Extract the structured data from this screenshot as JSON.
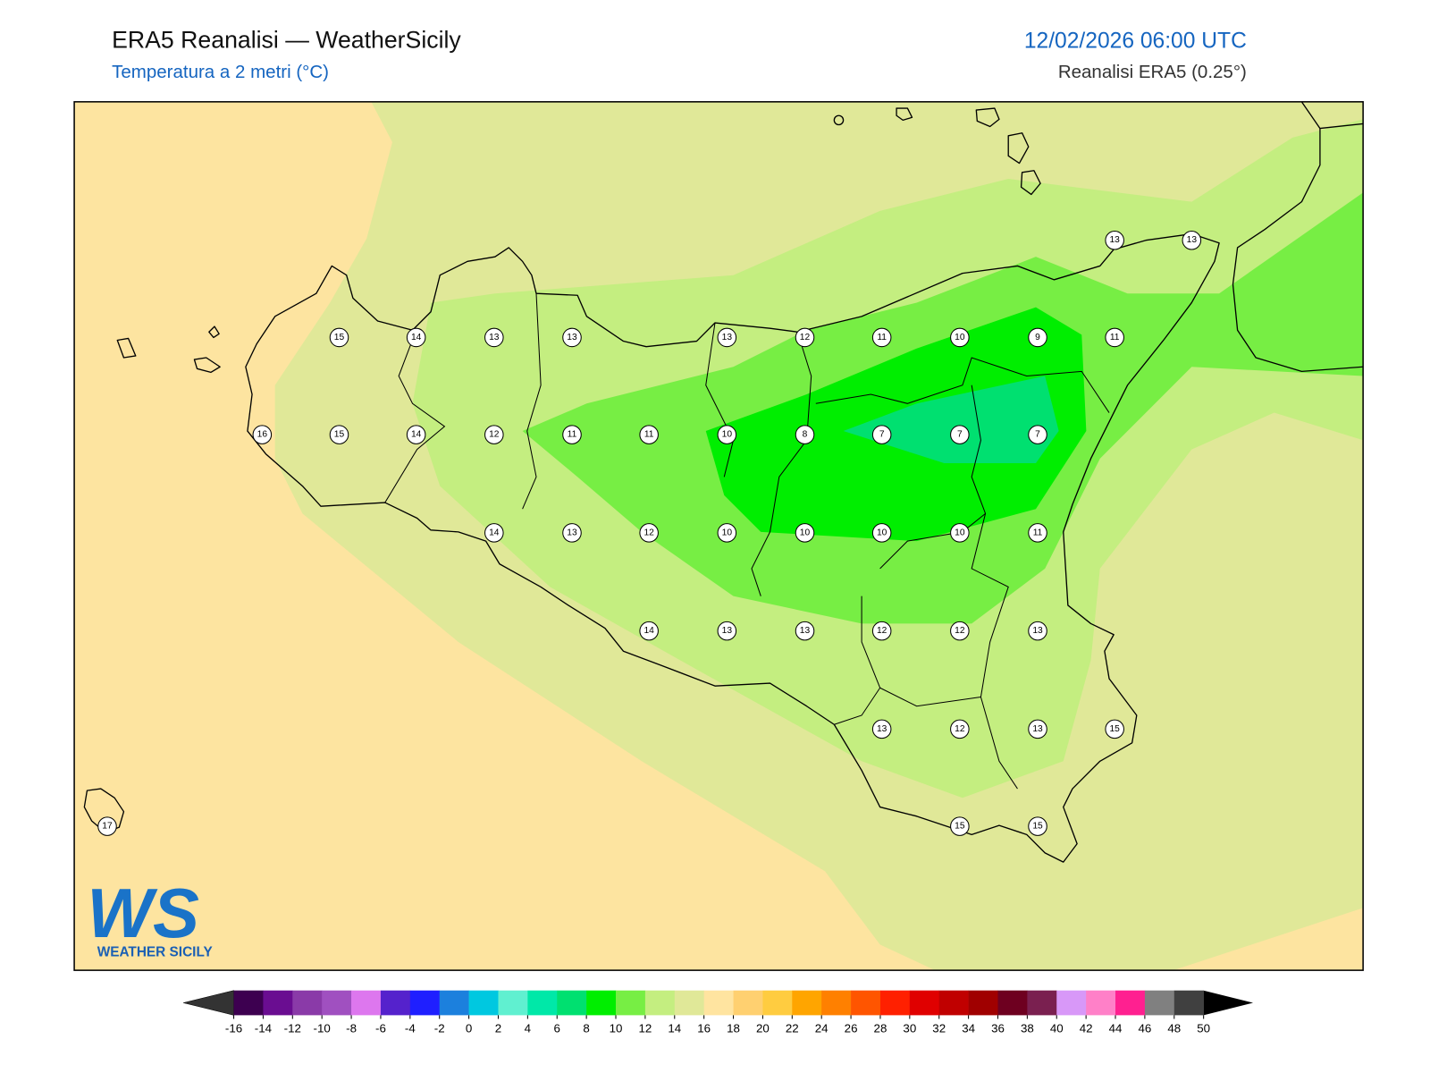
{
  "header": {
    "title": "ERA5 Reanalisi — WeatherSicily",
    "subtitle": "Temperatura a 2 metri (°C)",
    "datetime": "12/02/2026 06:00 UTC",
    "source": "Reanalisi ERA5 (0.25°)"
  },
  "stations": [
    15,
    14,
    13,
    13,
    13,
    12,
    11,
    10,
    9,
    11,
    13,
    13,
    16,
    15,
    14,
    12,
    11,
    11,
    10,
    8,
    7,
    7,
    7,
    14,
    13,
    12,
    10,
    10,
    10,
    10,
    11,
    14,
    13,
    13,
    12,
    12,
    13,
    13,
    12,
    13,
    15,
    17,
    15,
    15
  ],
  "colorbar": {
    "ticks": [
      -16,
      -14,
      -12,
      -10,
      -8,
      -6,
      -4,
      -2,
      0,
      2,
      4,
      6,
      8,
      10,
      12,
      14,
      16,
      18,
      20,
      22,
      24,
      26,
      28,
      30,
      32,
      34,
      36,
      38,
      40,
      42,
      44,
      46,
      48,
      50
    ],
    "colors": [
      "#3d0050",
      "#6a0d91",
      "#8a3aa8",
      "#a050c0",
      "#dd77ee",
      "#5522cc",
      "#1f1fff",
      "#1c80dd",
      "#00c8e0",
      "#60f0d0",
      "#00e8a8",
      "#00e070",
      "#00ee00",
      "#77ee44",
      "#c4ee80",
      "#e0e898",
      "#ffe4a0",
      "#ffd070",
      "#ffcc40",
      "#ffa500",
      "#ff8000",
      "#ff5500",
      "#ff2000",
      "#e00000",
      "#c00000",
      "#a00000",
      "#6e0020",
      "#7a2050",
      "#d898f8",
      "#ff80c8",
      "#ff2090",
      "#808080",
      "#404040"
    ],
    "under_color": "#333333",
    "over_color": "#000000"
  },
  "logo": {
    "initials": "WS",
    "name": "WEATHER SICILY"
  }
}
